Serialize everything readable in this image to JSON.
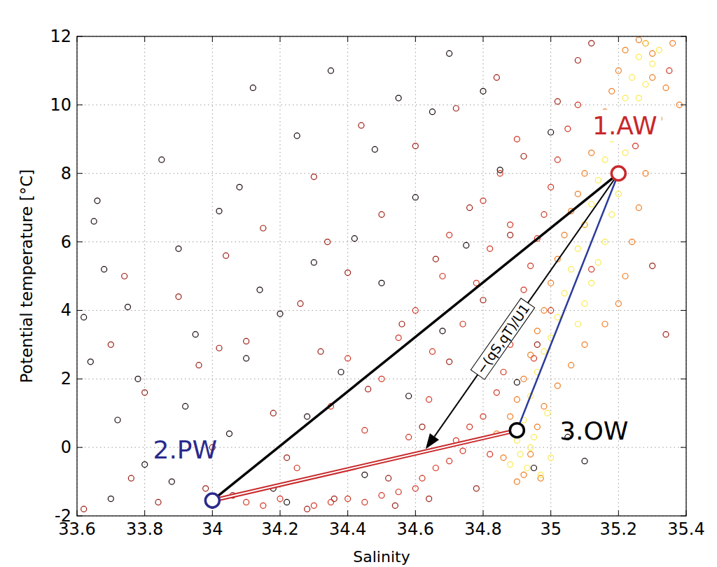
{
  "chart_data": {
    "type": "scatter",
    "xlabel": "Salinity",
    "ylabel": "Potential temperature [°C]",
    "xlim": [
      33.6,
      35.4
    ],
    "ylim": [
      -2,
      12
    ],
    "xticks": [
      33.6,
      33.8,
      34,
      34.2,
      34.4,
      34.6,
      34.8,
      35,
      35.2,
      35.4
    ],
    "yticks": [
      -2,
      0,
      2,
      4,
      6,
      8,
      10,
      12
    ],
    "grid": true,
    "series": [
      {
        "color": "#1a0a0a",
        "marker": "circle",
        "x": [
          33.62,
          33.65,
          33.68,
          33.66,
          33.7,
          33.75,
          33.78,
          33.8,
          33.85,
          33.9,
          33.92,
          33.95,
          34.0,
          34.02,
          34.05,
          34.08,
          34.1,
          34.14,
          34.18,
          34.2,
          34.25,
          34.28,
          34.3,
          34.35,
          34.38,
          34.42,
          34.45,
          34.5,
          34.55,
          34.58,
          34.6,
          34.65,
          34.68,
          34.7,
          34.75,
          34.8,
          34.85,
          34.9,
          35.0,
          35.05,
          34.12,
          33.72,
          34.22,
          34.48,
          34.95,
          35.1,
          33.64,
          33.88
        ],
        "values": [
          3.8,
          6.6,
          5.2,
          7.2,
          -1.5,
          4.1,
          2.0,
          -0.5,
          8.4,
          5.8,
          1.2,
          3.3,
          -1.7,
          6.9,
          0.4,
          7.6,
          2.6,
          4.6,
          -1.2,
          3.9,
          9.1,
          0.9,
          5.4,
          11.0,
          2.2,
          6.1,
          -0.8,
          4.8,
          10.2,
          1.5,
          7.3,
          9.8,
          3.4,
          11.5,
          5.9,
          10.4,
          8.1,
          1.9,
          9.2,
          0.3,
          10.5,
          0.8,
          -1.6,
          8.7,
          -0.6,
          -0.4,
          2.5,
          -1.0
        ]
      },
      {
        "color": "#9a1c12",
        "marker": "circle",
        "x": [
          33.62,
          33.7,
          33.74,
          33.8,
          33.84,
          33.9,
          33.96,
          34.0,
          34.04,
          34.06,
          34.1,
          34.15,
          34.18,
          34.22,
          34.26,
          34.3,
          34.32,
          34.36,
          34.4,
          34.44,
          34.46,
          34.5,
          34.52,
          34.56,
          34.6,
          34.62,
          34.66,
          34.7,
          34.72,
          34.76,
          34.78,
          34.8,
          34.84,
          34.88,
          34.92,
          34.96,
          35.02,
          35.08,
          35.12,
          35.3,
          35.34,
          33.76,
          34.28,
          34.54,
          34.02,
          34.34,
          34.64,
          33.98
        ],
        "values": [
          -1.8,
          3.0,
          5.0,
          1.6,
          -1.6,
          4.4,
          2.4,
          0.0,
          5.6,
          -1.4,
          3.1,
          6.4,
          1.0,
          -0.3,
          4.2,
          7.9,
          2.8,
          -1.5,
          5.1,
          9.4,
          1.7,
          6.8,
          -0.9,
          3.6,
          8.8,
          0.6,
          5.5,
          2.5,
          9.9,
          7.0,
          -1.2,
          4.3,
          10.8,
          6.2,
          8.5,
          3.0,
          10.1,
          11.3,
          11.8,
          5.3,
          3.3,
          -0.9,
          -1.8,
          -1.7,
          2.9,
          6.0,
          -1.5,
          -1.2
        ]
      },
      {
        "color": "#d0301e",
        "marker": "circle",
        "x": [
          34.3,
          34.35,
          34.4,
          34.45,
          34.5,
          34.55,
          34.6,
          34.62,
          34.66,
          34.7,
          34.72,
          34.74,
          34.76,
          34.8,
          34.82,
          34.84,
          34.86,
          34.88,
          34.9,
          34.92,
          34.94,
          34.96,
          34.98,
          35.0,
          35.02,
          35.05,
          35.08,
          34.5,
          34.55,
          34.6,
          34.65,
          34.68,
          34.7,
          34.74,
          34.78,
          34.8,
          34.82,
          34.85,
          34.88,
          34.9,
          34.45,
          34.4,
          34.35,
          34.58,
          34.64,
          34.2,
          34.25,
          34.15,
          34.1,
          35.1,
          35.12,
          35.0,
          34.95,
          35.25,
          35.3,
          35.35,
          35.28
        ],
        "values": [
          -1.7,
          -1.6,
          -1.5,
          -1.6,
          -1.4,
          -1.3,
          -1.2,
          -0.9,
          -0.6,
          -0.4,
          0.2,
          -0.1,
          0.6,
          0.9,
          -0.2,
          1.6,
          2.2,
          3.0,
          3.8,
          4.6,
          5.3,
          6.1,
          6.8,
          7.6,
          8.4,
          9.3,
          10.0,
          2.0,
          3.2,
          4.0,
          2.8,
          5.0,
          6.2,
          3.6,
          4.8,
          7.2,
          5.8,
          8.0,
          6.5,
          9.0,
          0.5,
          2.6,
          1.2,
          0.3,
          1.4,
          -1.5,
          -0.6,
          -1.7,
          -1.6,
          6.5,
          5.2,
          4.0,
          2.6,
          8.8,
          9.5,
          11.0,
          11.8
        ]
      },
      {
        "color": "#ef7a1e",
        "marker": "circle",
        "x": [
          34.84,
          34.86,
          34.88,
          34.9,
          34.92,
          34.94,
          34.96,
          34.98,
          35.0,
          35.02,
          35.04,
          35.06,
          35.08,
          35.1,
          35.12,
          35.14,
          35.16,
          35.18,
          35.2,
          35.22,
          35.26,
          35.3,
          35.32,
          35.28,
          35.26,
          35.24,
          35.22,
          35.2,
          35.16,
          35.1,
          35.06,
          35.02,
          34.98,
          34.96,
          34.94,
          34.92,
          34.9,
          34.97,
          35.3,
          35.36,
          35.34,
          35.38
        ],
        "values": [
          0.4,
          -0.3,
          0.9,
          1.4,
          2.0,
          2.7,
          3.4,
          4.0,
          4.8,
          5.5,
          6.2,
          6.9,
          7.4,
          8.0,
          8.6,
          9.2,
          9.8,
          10.4,
          11.0,
          11.6,
          11.9,
          10.8,
          9.6,
          8.0,
          7.0,
          6.0,
          5.0,
          4.2,
          3.6,
          3.0,
          2.4,
          1.8,
          1.2,
          0.6,
          -0.2,
          -0.8,
          -1.0,
          -0.9,
          11.5,
          11.8,
          10.5,
          10.0
        ]
      },
      {
        "color": "#fbe94a",
        "marker": "circle",
        "x": [
          34.88,
          34.9,
          34.92,
          34.93,
          34.94,
          34.95,
          34.96,
          34.97,
          34.98,
          34.99,
          35.0,
          35.0,
          35.02,
          35.04,
          35.06,
          35.08,
          35.1,
          35.12,
          35.14,
          35.16,
          35.18,
          35.2,
          35.22,
          35.24,
          35.26,
          35.28,
          35.3,
          35.32,
          35.22,
          35.24,
          35.2,
          35.18,
          35.16,
          35.14,
          35.12,
          35.1,
          35.26,
          35.28,
          35.08,
          34.91,
          34.94
        ],
        "values": [
          -0.5,
          0.2,
          0.8,
          -0.6,
          1.5,
          0.3,
          2.2,
          -0.8,
          2.8,
          1.0,
          3.2,
          -0.3,
          3.8,
          4.5,
          5.2,
          5.8,
          6.5,
          7.1,
          7.8,
          8.4,
          9.0,
          9.6,
          10.2,
          10.8,
          11.4,
          11.8,
          11.2,
          11.6,
          8.6,
          9.4,
          7.4,
          6.8,
          6.0,
          5.4,
          4.8,
          4.2,
          10.2,
          10.6,
          3.6,
          -0.2,
          0.0
        ]
      }
    ],
    "end_members": [
      {
        "label": "1.AW",
        "x": 35.2,
        "y": 8,
        "color": "#c8282a"
      },
      {
        "label": "2.PW",
        "x": 34,
        "y": -1.55,
        "color": "#2a2a8c"
      },
      {
        "label": "3.OW",
        "x": 34.9,
        "y": 0.5,
        "color": "#000000"
      }
    ],
    "mixing_lines": [
      {
        "from": 0,
        "to": 1,
        "color": "#000000"
      },
      {
        "from": 0,
        "to": 2,
        "color": "#2a3a9a"
      },
      {
        "from": 1,
        "to": 2,
        "color": "#c8282a"
      }
    ],
    "arrow": {
      "label": "−(qS,qT)/U1",
      "from": 0,
      "x": 34.63,
      "y": -0.05,
      "color": "#000000"
    }
  }
}
